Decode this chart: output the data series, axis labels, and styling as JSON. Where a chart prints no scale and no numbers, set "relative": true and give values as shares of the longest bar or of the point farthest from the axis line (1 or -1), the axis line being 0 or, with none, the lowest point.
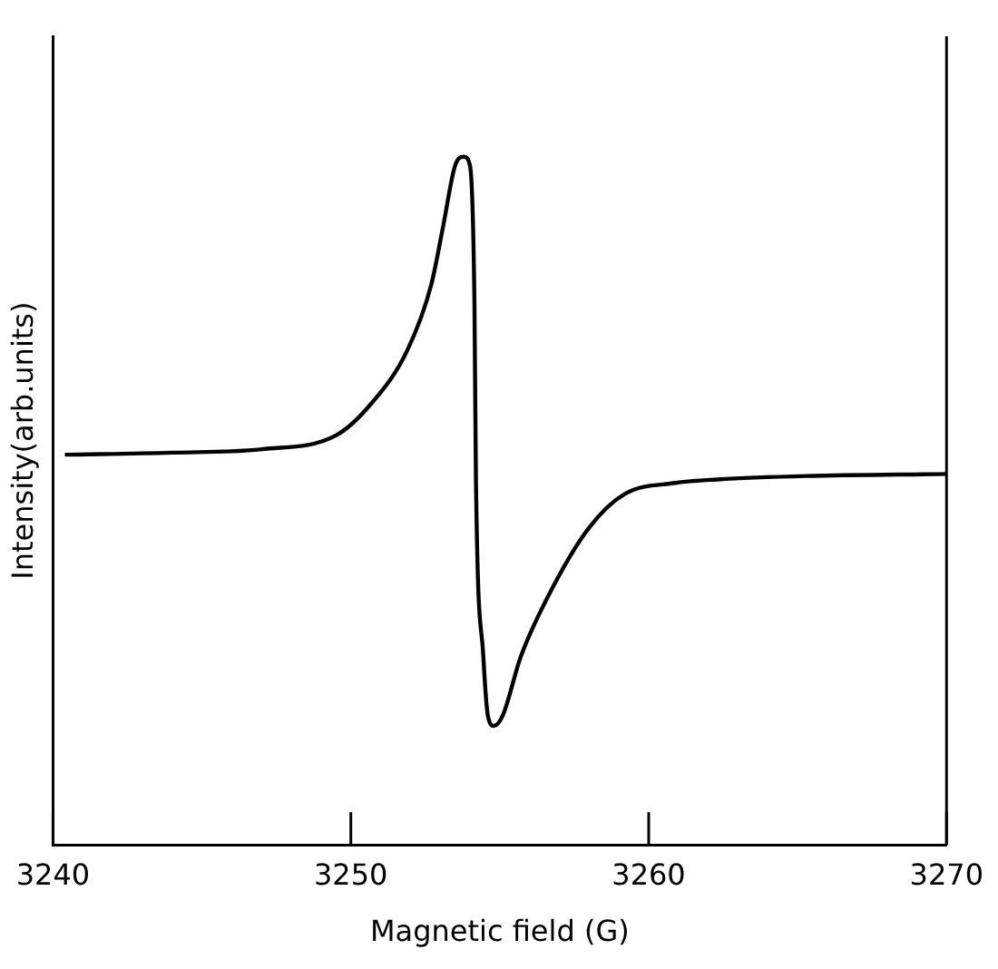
{
  "chart_data": {
    "type": "line",
    "xlabel": "Magnetic field (G)",
    "ylabel": "Intensity(arb.units)",
    "relative": true,
    "xlim": [
      3240,
      3270
    ],
    "xticks": [
      3240,
      3250,
      3260,
      3270
    ],
    "grid": false,
    "legend": false,
    "marker": "none",
    "line_style": "solid",
    "series": [
      {
        "color": "#000000",
        "x": [
          3240.4,
          3244.0,
          3247.0,
          3249.5,
          3250.7,
          3251.9,
          3252.7,
          3253.1,
          3253.5,
          3253.8,
          3254.0,
          3254.15,
          3254.2,
          3254.45,
          3254.6,
          3254.8,
          3255.1,
          3255.7,
          3256.8,
          3258.0,
          3259.2,
          3260.9,
          3262.3,
          3265.3,
          3270
        ],
        "values": [
          0.567,
          0.57,
          0.575,
          0.595,
          0.642,
          0.719,
          0.814,
          0.899,
          0.987,
          1.0,
          0.987,
          0.789,
          0.531,
          0.273,
          0.188,
          0.173,
          0.188,
          0.273,
          0.376,
          0.461,
          0.51,
          0.526,
          0.531,
          0.536,
          0.539
        ]
      }
    ]
  }
}
